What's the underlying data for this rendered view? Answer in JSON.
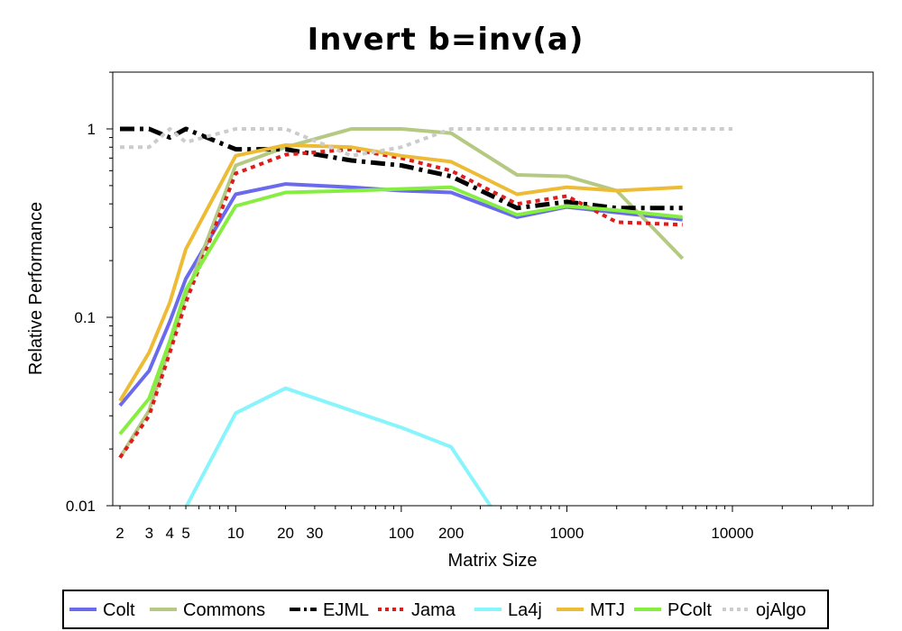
{
  "chart_data": {
    "type": "line",
    "title": "Invert b=inv(a)",
    "xlabel": "Matrix Size",
    "ylabel": "Relative Performance",
    "x_scale": "log",
    "y_scale": "log",
    "xlim": [
      1.8,
      50000
    ],
    "ylim": [
      0.01,
      2
    ],
    "x_tick_labels": [
      {
        "value": 2,
        "label": "2"
      },
      {
        "value": 3,
        "label": "3"
      },
      {
        "value": 4,
        "label": "4"
      },
      {
        "value": 5,
        "label": "5"
      },
      {
        "value": 10,
        "label": "10"
      },
      {
        "value": 20,
        "label": "20"
      },
      {
        "value": 30,
        "label": "30"
      },
      {
        "value": 100,
        "label": "100"
      },
      {
        "value": 200,
        "label": "200"
      },
      {
        "value": 1000,
        "label": "1000"
      },
      {
        "value": 10000,
        "label": "10000"
      }
    ],
    "y_tick_labels": [
      {
        "value": 0.01,
        "label": "0.01"
      },
      {
        "value": 0.1,
        "label": "0.1"
      },
      {
        "value": 1,
        "label": "1"
      }
    ],
    "grid": false,
    "legend_position": "bottom",
    "series": [
      {
        "name": "Colt",
        "color": "#6a6aee",
        "dash": "solid",
        "points": [
          [
            2,
            0.034
          ],
          [
            3,
            0.052
          ],
          [
            4,
            0.095
          ],
          [
            5,
            0.16
          ],
          [
            10,
            0.45
          ],
          [
            20,
            0.51
          ],
          [
            50,
            0.49
          ],
          [
            100,
            0.47
          ],
          [
            200,
            0.46
          ],
          [
            500,
            0.34
          ],
          [
            1000,
            0.385
          ],
          [
            2000,
            0.36
          ],
          [
            5000,
            0.33
          ]
        ]
      },
      {
        "name": "Commons",
        "color": "#b5c983",
        "dash": "solid",
        "points": [
          [
            2,
            0.018
          ],
          [
            3,
            0.032
          ],
          [
            4,
            0.07
          ],
          [
            5,
            0.13
          ],
          [
            10,
            0.64
          ],
          [
            20,
            0.8
          ],
          [
            50,
            1.0
          ],
          [
            100,
            1.0
          ],
          [
            200,
            0.95
          ],
          [
            500,
            0.57
          ],
          [
            1000,
            0.56
          ],
          [
            2000,
            0.47
          ],
          [
            5000,
            0.205
          ]
        ]
      },
      {
        "name": "EJML",
        "color": "#000000",
        "dash": "dashdot",
        "points": [
          [
            2,
            1.0
          ],
          [
            3,
            1.0
          ],
          [
            4,
            0.9
          ],
          [
            5,
            1.0
          ],
          [
            10,
            0.78
          ],
          [
            20,
            0.78
          ],
          [
            50,
            0.68
          ],
          [
            100,
            0.64
          ],
          [
            200,
            0.56
          ],
          [
            500,
            0.38
          ],
          [
            1000,
            0.41
          ],
          [
            2000,
            0.38
          ],
          [
            5000,
            0.38
          ]
        ]
      },
      {
        "name": "Jama",
        "color": "#dd1c1c",
        "dash": "dotted",
        "points": [
          [
            2,
            0.018
          ],
          [
            3,
            0.03
          ],
          [
            4,
            0.065
          ],
          [
            5,
            0.12
          ],
          [
            10,
            0.58
          ],
          [
            20,
            0.73
          ],
          [
            50,
            0.78
          ],
          [
            100,
            0.7
          ],
          [
            200,
            0.6
          ],
          [
            500,
            0.4
          ],
          [
            1000,
            0.44
          ],
          [
            2000,
            0.32
          ],
          [
            5000,
            0.31
          ]
        ]
      },
      {
        "name": "La4j",
        "color": "#88f4fb",
        "dash": "solid",
        "points": [
          [
            5,
            0.0098
          ],
          [
            10,
            0.031
          ],
          [
            20,
            0.042
          ],
          [
            100,
            0.026
          ],
          [
            200,
            0.0205
          ],
          [
            350,
            0.0098
          ]
        ]
      },
      {
        "name": "MTJ",
        "color": "#eebb35",
        "dash": "solid",
        "points": [
          [
            2,
            0.036
          ],
          [
            3,
            0.065
          ],
          [
            4,
            0.12
          ],
          [
            5,
            0.23
          ],
          [
            10,
            0.72
          ],
          [
            20,
            0.82
          ],
          [
            50,
            0.8
          ],
          [
            100,
            0.72
          ],
          [
            200,
            0.67
          ],
          [
            500,
            0.45
          ],
          [
            1000,
            0.49
          ],
          [
            2000,
            0.47
          ],
          [
            5000,
            0.49
          ]
        ]
      },
      {
        "name": "PColt",
        "color": "#86ee40",
        "dash": "solid",
        "points": [
          [
            2,
            0.024
          ],
          [
            3,
            0.037
          ],
          [
            4,
            0.075
          ],
          [
            5,
            0.14
          ],
          [
            10,
            0.39
          ],
          [
            20,
            0.46
          ],
          [
            50,
            0.47
          ],
          [
            100,
            0.48
          ],
          [
            200,
            0.49
          ],
          [
            500,
            0.35
          ],
          [
            1000,
            0.39
          ],
          [
            2000,
            0.37
          ],
          [
            5000,
            0.34
          ]
        ]
      },
      {
        "name": "ojAlgo",
        "color": "#cccccc",
        "dash": "dotted",
        "points": [
          [
            2,
            0.8
          ],
          [
            3,
            0.8
          ],
          [
            4,
            1.0
          ],
          [
            5,
            0.85
          ],
          [
            10,
            1.0
          ],
          [
            20,
            1.0
          ],
          [
            50,
            0.72
          ],
          [
            100,
            0.8
          ],
          [
            200,
            1.0
          ],
          [
            500,
            1.0
          ],
          [
            1000,
            1.0
          ],
          [
            2000,
            1.0
          ],
          [
            5000,
            1.0
          ],
          [
            10000,
            1.0
          ]
        ]
      }
    ]
  }
}
